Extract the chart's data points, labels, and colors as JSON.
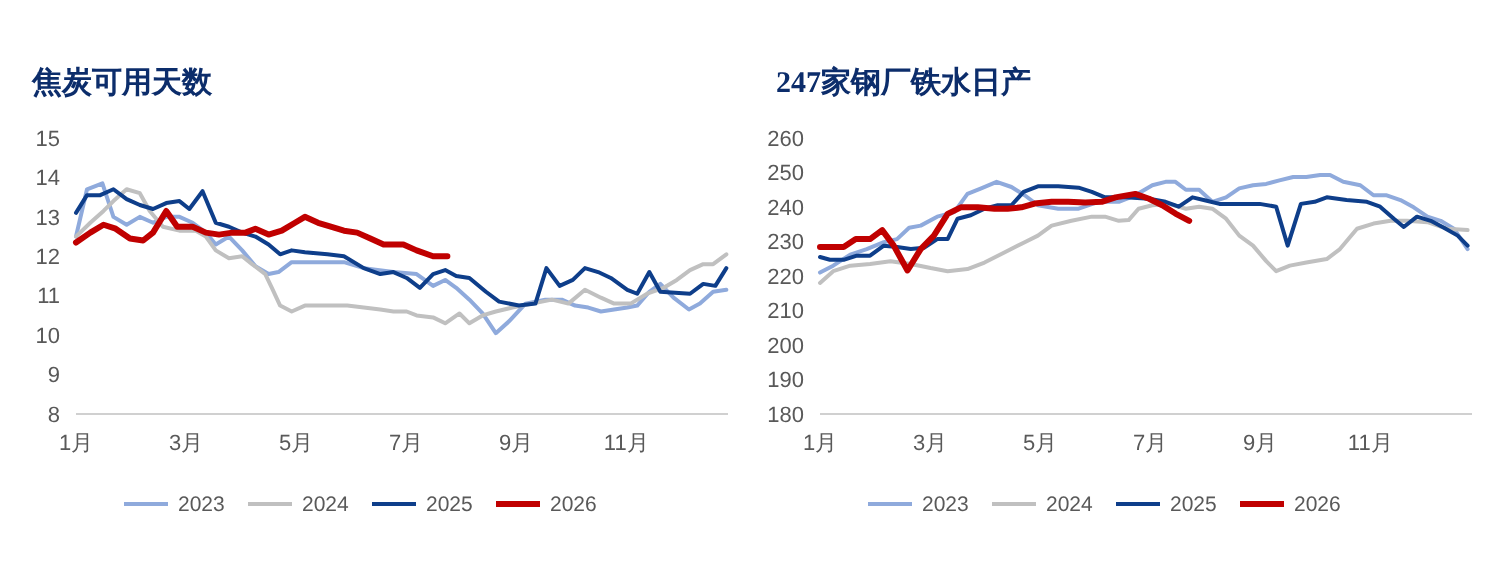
{
  "chart_data": [
    {
      "type": "line",
      "title": "焦炭可用天数",
      "xlim": [
        1,
        12.85
      ],
      "xticks": [
        {
          "value": 1,
          "label": "1月"
        },
        {
          "value": 3,
          "label": "3月"
        },
        {
          "value": 5,
          "label": "5月"
        },
        {
          "value": 7,
          "label": "7月"
        },
        {
          "value": 9,
          "label": "9月"
        },
        {
          "value": 11,
          "label": "11月"
        }
      ],
      "ylim": [
        8,
        15
      ],
      "yticks": [
        8,
        9,
        10,
        11,
        12,
        13,
        14,
        15
      ],
      "grid": false,
      "legend": "bottom",
      "marker": "none",
      "line_style": "solid",
      "series": [
        {
          "name": "2023",
          "color": "#8faadc",
          "x": [
            1,
            1.2,
            1.48,
            1.68,
            1.92,
            2.16,
            2.4,
            2.64,
            2.88,
            3.12,
            3.36,
            3.54,
            3.78,
            4.02,
            4.26,
            4.5,
            4.68,
            4.92,
            5.34,
            5.87,
            6.23,
            6.77,
            7.19,
            7.49,
            7.71,
            7.91,
            8.15,
            8.39,
            8.63,
            8.87,
            9.17,
            9.53,
            9.83,
            10.07,
            10.31,
            10.54,
            10.78,
            11.02,
            11.2,
            11.42,
            11.62,
            11.86,
            12.14,
            12.34,
            12.58,
            12.82
          ],
          "values": [
            12.5,
            13.7,
            13.85,
            13.0,
            12.8,
            13.0,
            12.85,
            13.0,
            13.0,
            12.85,
            12.6,
            12.3,
            12.5,
            12.15,
            11.75,
            11.55,
            11.6,
            11.85,
            11.85,
            11.85,
            11.7,
            11.6,
            11.55,
            11.25,
            11.4,
            11.2,
            10.9,
            10.55,
            10.05,
            10.35,
            10.8,
            10.9,
            10.9,
            10.75,
            10.7,
            10.6,
            10.65,
            10.7,
            10.75,
            11.1,
            11.3,
            10.95,
            10.65,
            10.8,
            11.1,
            11.15
          ]
        },
        {
          "name": "2024",
          "color": "#c0c0c0",
          "x": [
            1,
            1.26,
            1.5,
            1.68,
            1.92,
            2.16,
            2.34,
            2.58,
            2.88,
            3.18,
            3.36,
            3.54,
            3.78,
            4.02,
            4.2,
            4.44,
            4.56,
            4.71,
            4.92,
            5.16,
            5.57,
            5.93,
            6.23,
            6.53,
            6.77,
            7.01,
            7.19,
            7.49,
            7.71,
            7.97,
            8.15,
            8.39,
            8.63,
            8.93,
            9.29,
            9.65,
            9.95,
            10.25,
            10.54,
            10.78,
            11.08,
            11.38,
            11.68,
            11.92,
            12.16,
            12.4,
            12.58,
            12.82
          ],
          "values": [
            12.5,
            12.85,
            13.15,
            13.4,
            13.7,
            13.6,
            13.15,
            12.75,
            12.65,
            12.65,
            12.5,
            12.15,
            11.95,
            12.0,
            11.8,
            11.55,
            11.2,
            10.75,
            10.6,
            10.75,
            10.75,
            10.75,
            10.7,
            10.65,
            10.6,
            10.6,
            10.5,
            10.45,
            10.3,
            10.55,
            10.3,
            10.5,
            10.6,
            10.7,
            10.8,
            10.9,
            10.8,
            11.15,
            10.95,
            10.8,
            10.8,
            11.05,
            11.2,
            11.4,
            11.65,
            11.8,
            11.8,
            12.05
          ]
        },
        {
          "name": "2025",
          "color": "#0e3e8a",
          "x": [
            1,
            1.2,
            1.44,
            1.68,
            1.92,
            2.16,
            2.4,
            2.64,
            2.88,
            3.06,
            3.3,
            3.54,
            3.78,
            4.02,
            4.26,
            4.5,
            4.71,
            4.92,
            5.16,
            5.57,
            5.87,
            6.23,
            6.53,
            6.77,
            7.01,
            7.25,
            7.49,
            7.71,
            7.91,
            8.15,
            8.45,
            8.69,
            9.05,
            9.35,
            9.55,
            9.79,
            10.03,
            10.25,
            10.49,
            10.72,
            11.02,
            11.2,
            11.42,
            11.62,
            12.16,
            12.4,
            12.62,
            12.82
          ],
          "values": [
            13.1,
            13.55,
            13.55,
            13.7,
            13.45,
            13.3,
            13.2,
            13.35,
            13.4,
            13.2,
            13.65,
            12.85,
            12.75,
            12.6,
            12.5,
            12.3,
            12.05,
            12.15,
            12.1,
            12.05,
            12.0,
            11.7,
            11.55,
            11.6,
            11.45,
            11.2,
            11.55,
            11.65,
            11.5,
            11.45,
            11.1,
            10.85,
            10.75,
            10.8,
            11.7,
            11.25,
            11.4,
            11.7,
            11.6,
            11.45,
            11.15,
            11.05,
            11.6,
            11.1,
            11.05,
            11.3,
            11.25,
            11.7
          ]
        },
        {
          "name": "2026",
          "color": "#c00000",
          "x": [
            1,
            1.26,
            1.5,
            1.72,
            1.98,
            2.22,
            2.4,
            2.64,
            2.84,
            3.12,
            3.36,
            3.6,
            3.84,
            4.08,
            4.26,
            4.5,
            4.74,
            4.98,
            5.16,
            5.4,
            5.63,
            5.87,
            6.11,
            6.35,
            6.59,
            6.95,
            7.19,
            7.49,
            7.75
          ],
          "values": [
            12.35,
            12.6,
            12.8,
            12.7,
            12.45,
            12.4,
            12.6,
            13.15,
            12.75,
            12.75,
            12.6,
            12.55,
            12.6,
            12.6,
            12.7,
            12.55,
            12.65,
            12.85,
            13.0,
            12.85,
            12.75,
            12.65,
            12.6,
            12.45,
            12.3,
            12.3,
            12.15,
            12.0,
            12.0
          ]
        }
      ]
    },
    {
      "type": "line",
      "title": "247家钢厂铁水日产",
      "xlim": [
        1,
        12.85
      ],
      "xticks": [
        {
          "value": 1,
          "label": "1月"
        },
        {
          "value": 3,
          "label": "3月"
        },
        {
          "value": 5,
          "label": "5月"
        },
        {
          "value": 7,
          "label": "7月"
        },
        {
          "value": 9,
          "label": "9月"
        },
        {
          "value": 11,
          "label": "11月"
        }
      ],
      "ylim": [
        180,
        260
      ],
      "yticks": [
        180,
        190,
        200,
        210,
        220,
        230,
        240,
        250,
        260
      ],
      "grid": false,
      "legend": "bottom",
      "marker": "none",
      "line_style": "solid",
      "series": [
        {
          "name": "2023",
          "color": "#8faadc",
          "x": [
            1,
            1.24,
            1.55,
            1.85,
            2.16,
            2.4,
            2.62,
            2.83,
            3.13,
            3.44,
            3.68,
            3.93,
            4.21,
            4.48,
            4.72,
            4.96,
            5.33,
            5.7,
            6.06,
            6.43,
            6.73,
            7.04,
            7.28,
            7.46,
            7.65,
            7.89,
            8.13,
            8.38,
            8.62,
            8.87,
            9.11,
            9.35,
            9.6,
            9.84,
            10.09,
            10.27,
            10.51,
            10.82,
            11.06,
            11.3,
            11.55,
            11.79,
            12.04,
            12.28,
            12.52,
            12.77
          ],
          "values": [
            221,
            223,
            226.2,
            227.8,
            229.8,
            230.7,
            234,
            234.6,
            237.2,
            238.5,
            243.8,
            245.4,
            247.3,
            245.8,
            243.4,
            240.5,
            239.5,
            239.5,
            241.5,
            241.5,
            243.4,
            246.3,
            247.3,
            247.3,
            245,
            245,
            241.5,
            242.8,
            245.4,
            246.3,
            246.7,
            247.7,
            248.7,
            248.7,
            249.3,
            249.3,
            247.3,
            246.3,
            243.4,
            243.4,
            242,
            239.9,
            237.2,
            236,
            233.7,
            227.8
          ]
        },
        {
          "name": "2024",
          "color": "#c0c0c0",
          "x": [
            1,
            1.24,
            1.55,
            1.91,
            2.28,
            2.65,
            3.01,
            3.32,
            3.68,
            3.99,
            4.35,
            4.72,
            4.96,
            5.21,
            5.57,
            5.94,
            6.18,
            6.43,
            6.61,
            6.79,
            7.04,
            7.34,
            7.65,
            7.89,
            8.13,
            8.38,
            8.62,
            8.87,
            9.11,
            9.29,
            9.54,
            9.84,
            10.21,
            10.45,
            10.76,
            11.06,
            11.37,
            11.67,
            12.04,
            12.4,
            12.77
          ],
          "values": [
            218,
            221.4,
            223,
            223.5,
            224.3,
            223.5,
            222.3,
            221.4,
            222,
            223.9,
            226.8,
            229.8,
            231.7,
            234.6,
            236,
            237.2,
            237.2,
            236,
            236.2,
            239.5,
            240.5,
            240.9,
            239.5,
            240.1,
            239.5,
            236.6,
            231.7,
            228.8,
            224.3,
            221.4,
            223,
            223.9,
            224.9,
            227.8,
            233.7,
            235.2,
            236,
            236,
            235.6,
            233.7,
            233.3
          ]
        },
        {
          "name": "2025",
          "color": "#0e3e8a",
          "x": [
            1,
            1.18,
            1.43,
            1.67,
            1.91,
            2.16,
            2.4,
            2.65,
            2.89,
            3.13,
            3.32,
            3.5,
            3.74,
            3.99,
            4.23,
            4.48,
            4.7,
            4.96,
            5.33,
            5.7,
            5.94,
            6.18,
            6.55,
            6.98,
            7.28,
            7.52,
            7.77,
            8.01,
            8.26,
            8.62,
            8.99,
            9.29,
            9.5,
            9.74,
            9.99,
            10.21,
            10.57,
            10.94,
            11.18,
            11.43,
            11.61,
            11.85,
            12.1,
            12.34,
            12.59,
            12.77
          ],
          "values": [
            225.5,
            224.7,
            224.7,
            225.9,
            225.9,
            228.8,
            228.4,
            227.8,
            228.2,
            230.7,
            230.7,
            236.6,
            237.6,
            239.5,
            240.5,
            240.5,
            244.4,
            246,
            246,
            245.6,
            244.4,
            242.8,
            242.8,
            242.4,
            241.5,
            240.1,
            242.8,
            241.9,
            240.9,
            240.9,
            240.9,
            240.1,
            228.8,
            240.9,
            241.5,
            242.8,
            242,
            241.5,
            240.1,
            236.6,
            234.2,
            237.2,
            236,
            234,
            231.7,
            228.8
          ]
        },
        {
          "name": "2026",
          "color": "#c00000",
          "x": [
            1,
            1.43,
            1.65,
            1.91,
            2.13,
            2.34,
            2.59,
            2.83,
            3.07,
            3.32,
            3.56,
            3.87,
            4.17,
            4.41,
            4.66,
            4.9,
            5.21,
            5.51,
            5.82,
            6.12,
            6.37,
            6.73,
            6.98,
            7.22,
            7.46,
            7.71
          ],
          "values": [
            228.4,
            228.4,
            230.7,
            230.7,
            233.3,
            228.8,
            221.6,
            227.8,
            231.7,
            238,
            239.9,
            239.9,
            239.5,
            239.5,
            239.9,
            241,
            241.5,
            241.5,
            241.3,
            241.5,
            242.8,
            243.8,
            242.4,
            240.5,
            238.1,
            236
          ]
        }
      ]
    }
  ]
}
